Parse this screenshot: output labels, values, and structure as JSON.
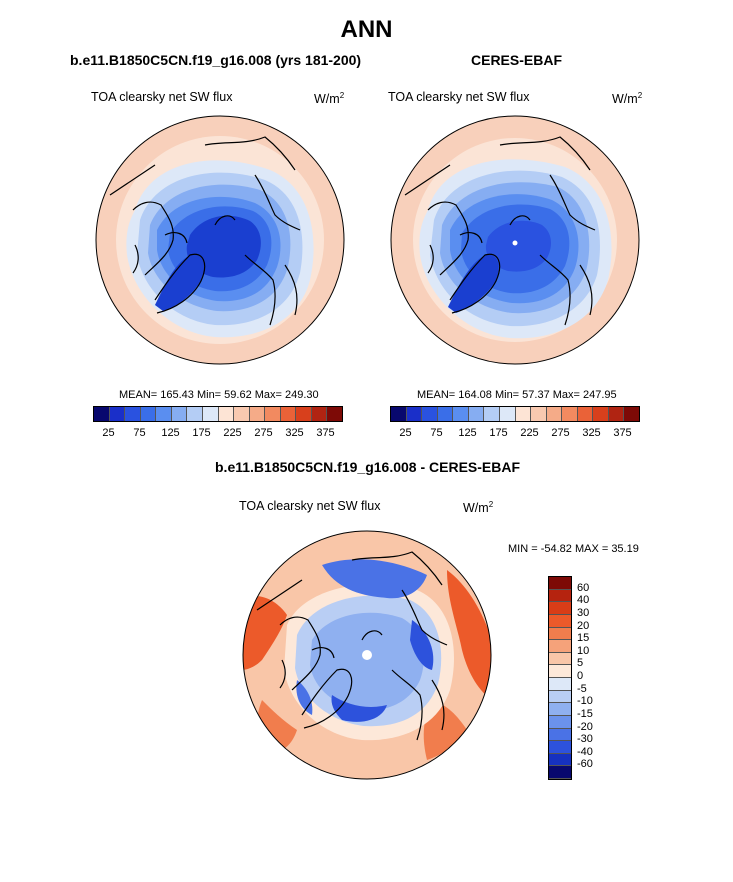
{
  "figure": {
    "title": "ANN"
  },
  "panels": {
    "model": {
      "title": "b.e11.B1850C5CN.f19_g16.008 (yrs 181-200)",
      "variable": "TOA clearsky net SW flux",
      "unit": "W/m",
      "unit_exp": "2",
      "stats": "MEAN= 165.43  Min=  59.62  Max= 249.30"
    },
    "obs": {
      "title": "CERES-EBAF",
      "variable": "TOA clearsky net SW flux",
      "unit": "W/m",
      "unit_exp": "2",
      "stats": "MEAN= 164.08  Min=  57.37  Max= 247.95"
    },
    "diff": {
      "title": "b.e11.B1850C5CN.f19_g16.008 - CERES-EBAF",
      "variable": "TOA clearsky net SW flux",
      "unit": "W/m",
      "unit_exp": "2",
      "stats": "MIN = -54.82 MAX =  35.19"
    }
  },
  "colorbars": {
    "abs": {
      "colors": [
        "#08086e",
        "#1a2fc9",
        "#2a52e0",
        "#3a6ee8",
        "#5a8ef0",
        "#86adf2",
        "#b4cdf5",
        "#dde8f8",
        "#fde4d5",
        "#f8c9b0",
        "#f5ab88",
        "#f28a60",
        "#ea6238",
        "#d8401c",
        "#b02412",
        "#7d0a06"
      ],
      "tick_labels": [
        "25",
        "75",
        "125",
        "175",
        "225",
        "275",
        "325",
        "375"
      ]
    },
    "diff": {
      "colors": [
        "#7d0a06",
        "#b5230f",
        "#d83d17",
        "#ec5a2a",
        "#f17d4d",
        "#f5a27a",
        "#f9c6a8",
        "#fde8d9",
        "#dde8f8",
        "#b9cef4",
        "#8fb0f0",
        "#6b92ec",
        "#4a72e6",
        "#2d52dc",
        "#1631bf",
        "#08086e"
      ],
      "tick_labels": [
        "60",
        "40",
        "30",
        "20",
        "15",
        "10",
        "5",
        "0",
        "-5",
        "-10",
        "-15",
        "-20",
        "-30",
        "-40",
        "-60"
      ]
    }
  },
  "map": {
    "projection": "north polar stereographic",
    "colors": {
      "outer": "#f8d0bb",
      "ring2": "#fbe4d6",
      "ring3": "#dde8f8",
      "ring4": "#b4cdf5",
      "ring5": "#86adf2",
      "ring6": "#5a8ef0",
      "ring7": "#3a6ee8",
      "core": "#1a3fd0",
      "diff_base": "#f7d6c3",
      "diff_warm": "#f07a4d",
      "diff_cool": "#3d68e4",
      "diff_light": "#c7d8f5"
    }
  }
}
